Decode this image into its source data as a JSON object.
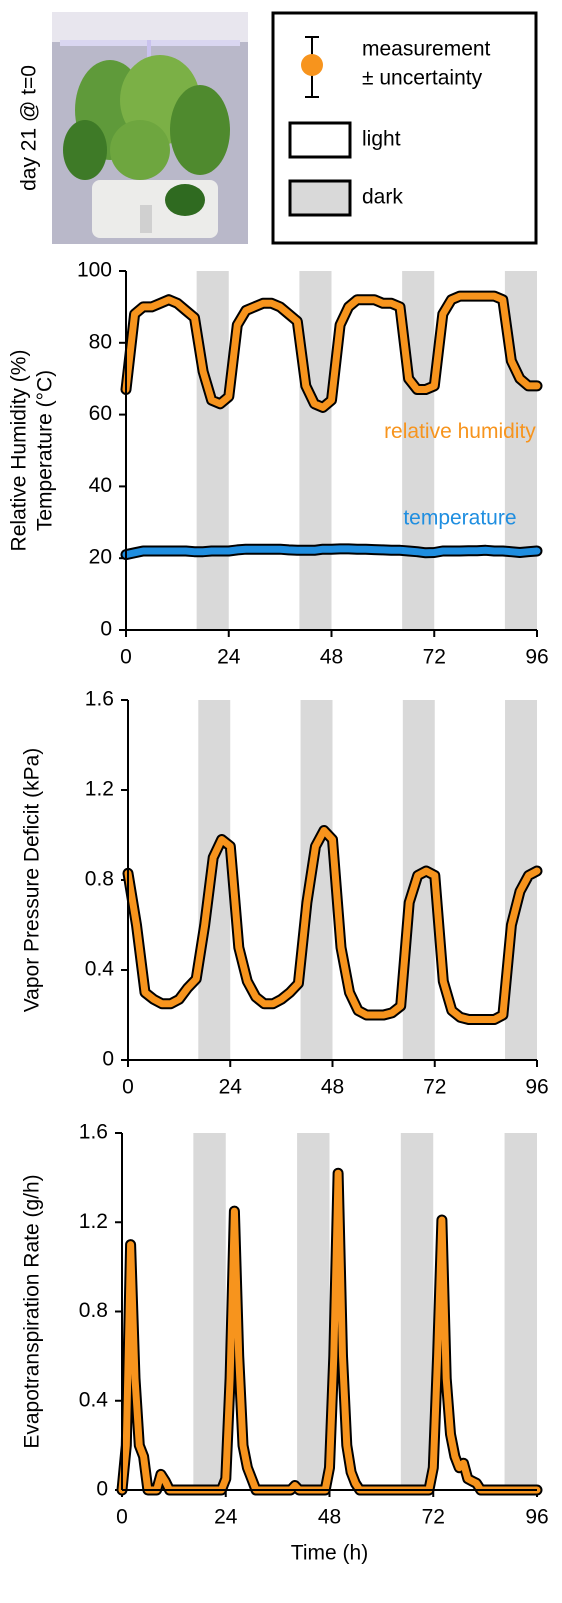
{
  "photo_label": "day 21 @ t=0",
  "legend": {
    "measurement": [
      "measurement",
      "± uncertainty"
    ],
    "light": "light",
    "dark": "dark"
  },
  "chart_data": [
    {
      "type": "line",
      "ylabel": [
        "Relative Humidity (%)",
        "Temperature (°C)"
      ],
      "xlim": [
        0,
        96
      ],
      "xticks": [
        0,
        24,
        48,
        72,
        96
      ],
      "ylim": [
        0,
        100
      ],
      "yticks": [
        0,
        20,
        40,
        60,
        80,
        100
      ],
      "dark_periods": [
        [
          16.5,
          24
        ],
        [
          40.5,
          48
        ],
        [
          64.5,
          72
        ],
        [
          88.5,
          96
        ]
      ],
      "x": [
        0,
        2,
        4,
        6,
        8,
        10,
        12,
        14,
        16,
        18,
        20,
        22,
        24,
        26,
        28,
        30,
        32,
        34,
        36,
        38,
        40,
        42,
        44,
        46,
        48,
        50,
        52,
        54,
        56,
        58,
        60,
        62,
        64,
        66,
        68,
        70,
        72,
        74,
        76,
        78,
        80,
        82,
        84,
        86,
        88,
        90,
        92,
        94,
        96
      ],
      "series": [
        {
          "name": "relative humidity",
          "color": "#f7941d",
          "values": [
            67,
            88,
            90,
            90,
            91,
            92,
            91,
            89,
            87,
            72,
            64,
            63,
            65,
            85,
            89,
            90,
            91,
            91,
            90,
            88,
            86,
            68,
            63,
            62,
            64,
            85,
            90,
            92,
            92,
            92,
            91,
            91,
            90,
            70,
            67,
            67,
            68,
            88,
            92,
            93,
            93,
            93,
            93,
            93,
            92,
            75,
            70,
            68,
            68
          ]
        },
        {
          "name": "temperature",
          "color": "#1f8ee0",
          "values": [
            21,
            21.5,
            22,
            22,
            22,
            22,
            22,
            22,
            21.8,
            21.8,
            22,
            22,
            22,
            22.3,
            22.5,
            22.5,
            22.5,
            22.5,
            22.5,
            22.3,
            22.2,
            22.2,
            22.2,
            22.5,
            22.5,
            22.6,
            22.6,
            22.5,
            22.5,
            22.4,
            22.3,
            22.2,
            22.2,
            22,
            21.8,
            21.5,
            21.6,
            22,
            22,
            22,
            22.1,
            22.1,
            22.2,
            22,
            22,
            21.8,
            21.6,
            21.8,
            22
          ]
        }
      ]
    },
    {
      "type": "line",
      "ylabel": [
        "Vapor Pressure Deficit (kPa)"
      ],
      "xlim": [
        0,
        96
      ],
      "xticks": [
        0,
        24,
        48,
        72,
        96
      ],
      "ylim": [
        0,
        1.6
      ],
      "yticks": [
        0,
        0.4,
        0.8,
        1.2,
        1.6
      ],
      "dark_periods": [
        [
          16.5,
          24
        ],
        [
          40.5,
          48
        ],
        [
          64.5,
          72
        ],
        [
          88.5,
          96
        ]
      ],
      "x": [
        0,
        2,
        4,
        6,
        8,
        10,
        12,
        14,
        16,
        18,
        20,
        22,
        24,
        26,
        28,
        30,
        32,
        34,
        36,
        38,
        40,
        42,
        44,
        46,
        48,
        50,
        52,
        54,
        56,
        58,
        60,
        62,
        64,
        66,
        68,
        70,
        72,
        74,
        76,
        78,
        80,
        82,
        84,
        86,
        88,
        90,
        92,
        94,
        96
      ],
      "series": [
        {
          "color": "#f7941d",
          "values": [
            0.83,
            0.6,
            0.3,
            0.27,
            0.25,
            0.25,
            0.27,
            0.32,
            0.36,
            0.6,
            0.9,
            0.98,
            0.95,
            0.5,
            0.35,
            0.28,
            0.25,
            0.25,
            0.27,
            0.3,
            0.34,
            0.7,
            0.95,
            1.02,
            0.98,
            0.5,
            0.3,
            0.22,
            0.2,
            0.2,
            0.2,
            0.21,
            0.24,
            0.7,
            0.82,
            0.84,
            0.82,
            0.35,
            0.22,
            0.19,
            0.18,
            0.18,
            0.18,
            0.18,
            0.2,
            0.6,
            0.75,
            0.82,
            0.84
          ]
        }
      ]
    },
    {
      "type": "line",
      "ylabel": [
        "Evapotranspiration Rate (g/h)"
      ],
      "xlabel": "Time (h)",
      "xlim": [
        0,
        96
      ],
      "xticks": [
        0,
        24,
        48,
        72,
        96
      ],
      "ylim": [
        0,
        1.6
      ],
      "yticks": [
        0,
        0.4,
        0.8,
        1.2,
        1.6
      ],
      "dark_periods": [
        [
          16.5,
          24
        ],
        [
          40.5,
          48
        ],
        [
          64.5,
          72
        ],
        [
          88.5,
          96
        ]
      ],
      "x": [
        0,
        1,
        2,
        3,
        4,
        5,
        6,
        7,
        8,
        9,
        10,
        11,
        12,
        13,
        14,
        15,
        16,
        17,
        18,
        19,
        20,
        21,
        22,
        23,
        24,
        25,
        26,
        27,
        28,
        29,
        30,
        31,
        32,
        33,
        34,
        35,
        36,
        37,
        38,
        39,
        40,
        41,
        42,
        43,
        44,
        45,
        46,
        47,
        48,
        49,
        50,
        51,
        52,
        53,
        54,
        55,
        56,
        57,
        58,
        59,
        60,
        61,
        62,
        63,
        64,
        65,
        66,
        67,
        68,
        69,
        70,
        71,
        72,
        73,
        74,
        75,
        76,
        77,
        78,
        79,
        80,
        81,
        82,
        83,
        84,
        85,
        86,
        87,
        88,
        89,
        90,
        91,
        92,
        93,
        94,
        95,
        96
      ],
      "series": [
        {
          "color": "#f7941d",
          "values": [
            0,
            0.2,
            1.1,
            0.5,
            0.2,
            0.15,
            0,
            0,
            0,
            0.07,
            0.04,
            0,
            0,
            0,
            0,
            0,
            0,
            0,
            0,
            0,
            0,
            0,
            0,
            0,
            0.05,
            0.5,
            1.25,
            0.6,
            0.2,
            0.1,
            0.05,
            0,
            0,
            0,
            0,
            0,
            0,
            0,
            0,
            0,
            0.02,
            0,
            0,
            0,
            0,
            0,
            0,
            0,
            0.1,
            0.6,
            1.42,
            0.6,
            0.2,
            0.08,
            0.03,
            0,
            0,
            0,
            0,
            0,
            0,
            0,
            0,
            0,
            0,
            0,
            0,
            0,
            0,
            0,
            0,
            0,
            0.1,
            0.6,
            1.21,
            0.5,
            0.25,
            0.15,
            0.1,
            0.12,
            0.05,
            0.04,
            0.03,
            0,
            0,
            0,
            0,
            0,
            0,
            0,
            0,
            0,
            0,
            0,
            0,
            0,
            0
          ]
        }
      ]
    }
  ]
}
